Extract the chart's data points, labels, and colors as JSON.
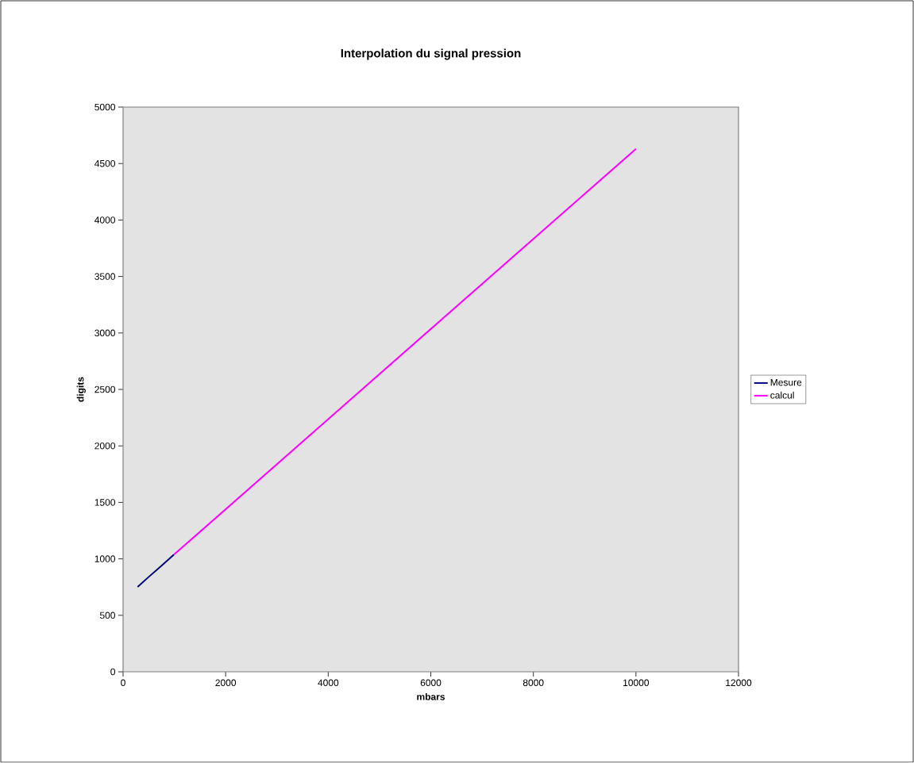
{
  "chart_data": {
    "type": "line",
    "title": "Interpolation du signal pression",
    "xlabel": "mbars",
    "ylabel": "digits",
    "xlim": [
      0,
      12000
    ],
    "xticks": [
      0,
      2000,
      4000,
      6000,
      8000,
      10000,
      12000
    ],
    "ylim": [
      0,
      5000
    ],
    "yticks": [
      0,
      500,
      1000,
      1500,
      2000,
      2500,
      3000,
      3500,
      4000,
      4500,
      5000
    ],
    "legend": "right",
    "grid": false,
    "series": [
      {
        "name": "Mesure",
        "color": "#000080",
        "x": [
          283,
          500,
          750,
          991
        ],
        "values": [
          751,
          840,
          940,
          1037
        ]
      },
      {
        "name": "calcul",
        "color": "#ff00ff",
        "x": [
          991,
          10000
        ],
        "values": [
          1037,
          4630
        ]
      }
    ]
  }
}
